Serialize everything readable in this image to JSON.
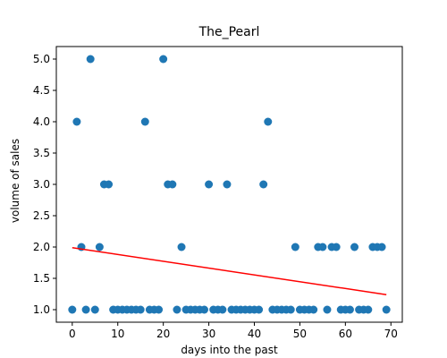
{
  "chart_data": {
    "type": "scatter",
    "title": "The_Pearl",
    "xlabel": "days into the past",
    "ylabel": "volume of sales",
    "xlim": [
      -3.5,
      72.5
    ],
    "ylim": [
      0.8,
      5.2
    ],
    "xticks": [
      0,
      10,
      20,
      30,
      40,
      50,
      60,
      70
    ],
    "yticks": [
      1.0,
      1.5,
      2.0,
      2.5,
      3.0,
      3.5,
      4.0,
      4.5,
      5.0
    ],
    "ytick_labels": [
      "1.0",
      "1.5",
      "2.0",
      "2.5",
      "3.0",
      "3.5",
      "4.0",
      "4.5",
      "5.0"
    ],
    "grid": false,
    "points": {
      "color": "#1f77b4",
      "x": [
        0,
        1,
        2,
        3,
        4,
        5,
        6,
        7,
        8,
        9,
        10,
        11,
        12,
        13,
        14,
        15,
        16,
        17,
        18,
        19,
        20,
        21,
        22,
        23,
        24,
        25,
        26,
        27,
        28,
        29,
        30,
        31,
        32,
        33,
        34,
        35,
        36,
        37,
        38,
        39,
        40,
        41,
        42,
        43,
        44,
        45,
        46,
        47,
        48,
        49,
        50,
        51,
        52,
        53,
        54,
        55,
        56,
        57,
        58,
        59,
        60,
        61,
        62,
        63,
        64,
        65,
        66,
        67,
        68,
        69
      ],
      "y": [
        1,
        4,
        2,
        1,
        5,
        1,
        2,
        3,
        3,
        1,
        1,
        1,
        1,
        1,
        1,
        1,
        4,
        1,
        1,
        1,
        5,
        3,
        3,
        1,
        2,
        1,
        1,
        1,
        1,
        1,
        3,
        1,
        1,
        1,
        3,
        1,
        1,
        1,
        1,
        1,
        1,
        1,
        3,
        4,
        1,
        1,
        1,
        1,
        1,
        2,
        1,
        1,
        1,
        1,
        2,
        2,
        1,
        2,
        2,
        1,
        1,
        1,
        2,
        1,
        1,
        1,
        2,
        2,
        2,
        1
      ]
    },
    "trend_line": {
      "color": "#ff0000",
      "x": [
        0,
        69
      ],
      "y": [
        1.99,
        1.24
      ]
    }
  }
}
